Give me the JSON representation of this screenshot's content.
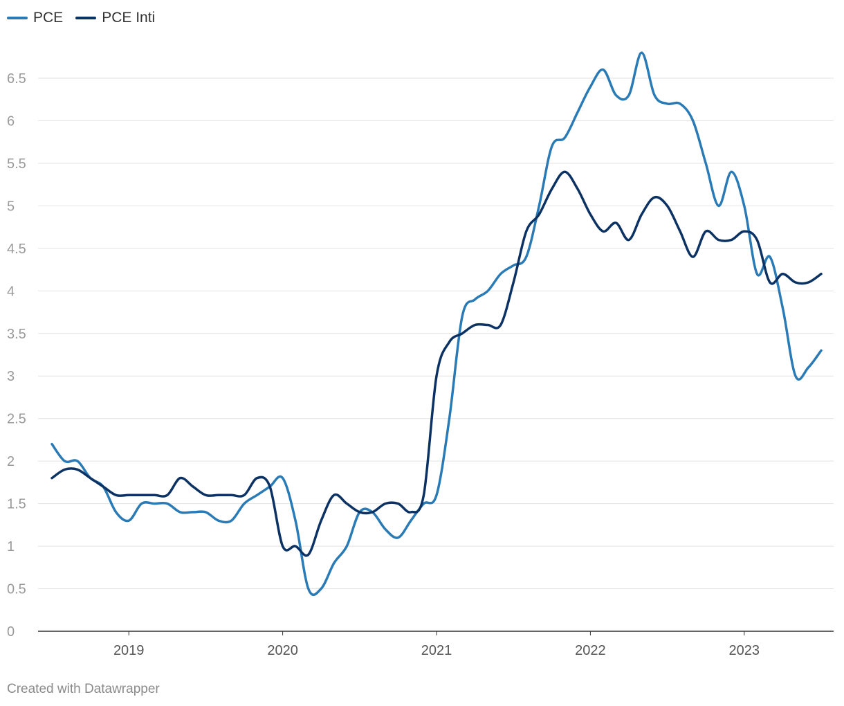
{
  "chart_data": {
    "type": "line",
    "title": "",
    "xlabel": "",
    "ylabel": "",
    "ylim": [
      0,
      6.5
    ],
    "yticks": [
      0,
      0.5,
      1,
      1.5,
      2,
      2.5,
      3,
      3.5,
      4,
      4.5,
      5,
      5.5,
      6,
      6.5
    ],
    "xlim": [
      "2018-07",
      "2023-07"
    ],
    "xticks": [
      {
        "x": "2019-01",
        "label": "2019"
      },
      {
        "x": "2020-01",
        "label": "2020"
      },
      {
        "x": "2021-01",
        "label": "2021"
      },
      {
        "x": "2022-01",
        "label": "2022"
      },
      {
        "x": "2023-01",
        "label": "2023"
      }
    ],
    "grid": true,
    "legend_position": "top-left",
    "x": [
      "2018-07",
      "2018-08",
      "2018-09",
      "2018-10",
      "2018-11",
      "2018-12",
      "2019-01",
      "2019-02",
      "2019-03",
      "2019-04",
      "2019-05",
      "2019-06",
      "2019-07",
      "2019-08",
      "2019-09",
      "2019-10",
      "2019-11",
      "2019-12",
      "2020-01",
      "2020-02",
      "2020-03",
      "2020-04",
      "2020-05",
      "2020-06",
      "2020-07",
      "2020-08",
      "2020-09",
      "2020-10",
      "2020-11",
      "2020-12",
      "2021-01",
      "2021-02",
      "2021-03",
      "2021-04",
      "2021-05",
      "2021-06",
      "2021-07",
      "2021-08",
      "2021-09",
      "2021-10",
      "2021-11",
      "2021-12",
      "2022-01",
      "2022-02",
      "2022-03",
      "2022-04",
      "2022-05",
      "2022-06",
      "2022-07",
      "2022-08",
      "2022-09",
      "2022-10",
      "2022-11",
      "2022-12",
      "2023-01",
      "2023-02",
      "2023-03",
      "2023-04",
      "2023-05",
      "2023-06",
      "2023-07"
    ],
    "series": [
      {
        "name": "PCE",
        "color": "#2a7ab5",
        "values": [
          2.2,
          2.0,
          2.0,
          1.8,
          1.7,
          1.4,
          1.3,
          1.5,
          1.5,
          1.5,
          1.4,
          1.4,
          1.4,
          1.3,
          1.3,
          1.5,
          1.6,
          1.7,
          1.8,
          1.3,
          0.5,
          0.5,
          0.8,
          1.0,
          1.4,
          1.4,
          1.2,
          1.1,
          1.3,
          1.5,
          1.6,
          2.5,
          3.7,
          3.9,
          4.0,
          4.2,
          4.3,
          4.4,
          5.0,
          5.7,
          5.8,
          6.1,
          6.4,
          6.6,
          6.3,
          6.3,
          6.8,
          6.3,
          6.2,
          6.2,
          6.0,
          5.5,
          5.0,
          5.4,
          5.0,
          4.2,
          4.4,
          3.8,
          3.0,
          3.1,
          3.3
        ]
      },
      {
        "name": "PCE Inti",
        "color": "#0b3263",
        "values": [
          1.8,
          1.9,
          1.9,
          1.8,
          1.7,
          1.6,
          1.6,
          1.6,
          1.6,
          1.6,
          1.8,
          1.7,
          1.6,
          1.6,
          1.6,
          1.6,
          1.8,
          1.7,
          1.0,
          1.0,
          0.9,
          1.3,
          1.6,
          1.5,
          1.4,
          1.4,
          1.5,
          1.5,
          1.4,
          1.6,
          3.0,
          3.4,
          3.5,
          3.6,
          3.6,
          3.6,
          4.1,
          4.7,
          4.9,
          5.2,
          5.4,
          5.2,
          4.9,
          4.7,
          4.8,
          4.6,
          4.9,
          5.1,
          5.0,
          4.7,
          4.4,
          4.7,
          4.6,
          4.6,
          4.7,
          4.6,
          4.1,
          4.2,
          4.1,
          4.1,
          4.2
        ]
      }
    ]
  },
  "legend": {
    "items": [
      {
        "label": "PCE",
        "color": "#2a7ab5"
      },
      {
        "label": "PCE Inti",
        "color": "#0b3263"
      }
    ]
  },
  "footer": {
    "credit": "Created with Datawrapper"
  }
}
